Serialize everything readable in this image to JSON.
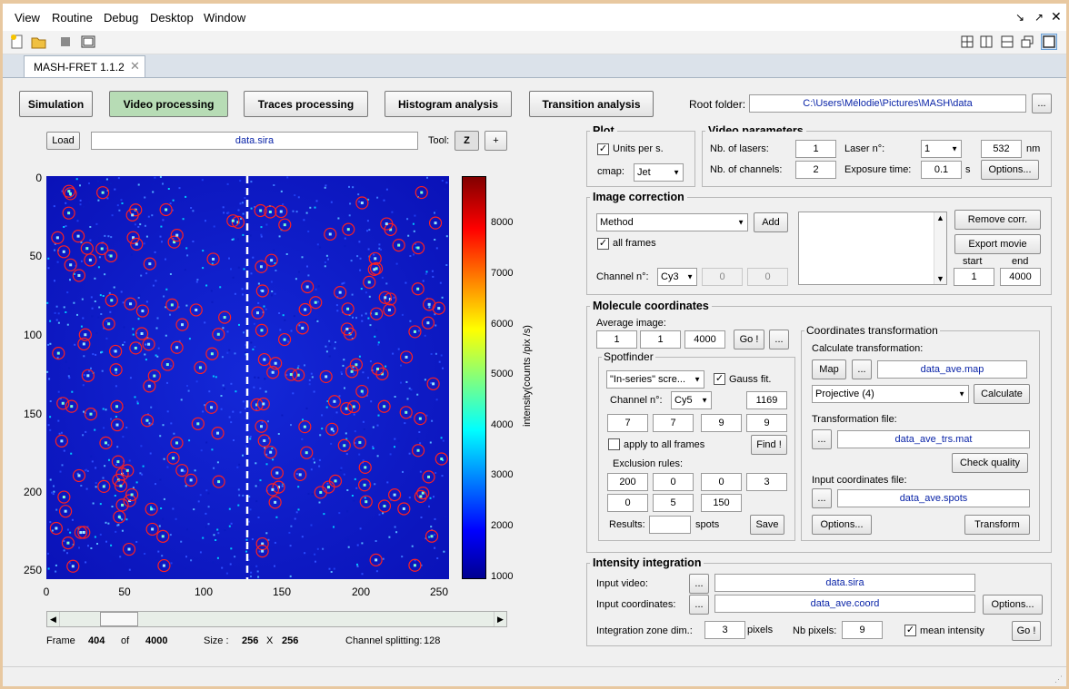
{
  "menu": [
    "View",
    "Routine",
    "Debug",
    "Desktop",
    "Window"
  ],
  "tab": {
    "label": "MASH-FRET 1.1.2"
  },
  "nav": [
    "Simulation",
    "Video processing",
    "Traces processing",
    "Histogram analysis",
    "Transition analysis"
  ],
  "root": {
    "label": "Root folder:",
    "path": "C:\\Users\\Mélodie\\Pictures\\MASH\\data",
    "browse": "..."
  },
  "viewer": {
    "load": "Load",
    "file": "data.sira",
    "tool_label": "Tool:",
    "tool_z": "Z",
    "tool_plus": "+",
    "yticks": [
      "0",
      "50",
      "100",
      "150",
      "200",
      "250"
    ],
    "xticks": [
      "0",
      "50",
      "100",
      "150",
      "200",
      "250"
    ],
    "cticks": [
      "8000",
      "7000",
      "6000",
      "5000",
      "4000",
      "3000",
      "2000",
      "1000"
    ],
    "clabel": "intensity(counts /pix /s)",
    "frame_label": "Frame",
    "frame": "404",
    "of_label": "of",
    "total": "4000",
    "size_label": "Size :",
    "size_w": "256",
    "x_label": "X",
    "size_h": "256",
    "split_label": "Channel splitting:",
    "split": "128",
    "slider_frac": 0.101
  },
  "plot": {
    "title": "Plot",
    "units": "Units per s.",
    "cmap_label": "cmap:",
    "cmap": "Jet"
  },
  "video_params": {
    "title": "Video parameters",
    "lasers_label": "Nb. of lasers:",
    "lasers": "1",
    "laser_n_label": "Laser n°:",
    "laser_n": "1",
    "wavelength": "532",
    "nm": "nm",
    "channels_label": "Nb. of channels:",
    "channels": "2",
    "exposure_label": "Exposure time:",
    "exposure": "0.1",
    "s": "s",
    "options": "Options..."
  },
  "image_corr": {
    "title": "Image correction",
    "method": "Method",
    "add": "Add",
    "all_frames": "all frames",
    "channel_label": "Channel n°:",
    "channel": "Cy3",
    "v1": "0",
    "v2": "0",
    "remove": "Remove corr.",
    "export": "Export movie",
    "start_label": "start",
    "end_label": "end",
    "start": "1",
    "end": "4000"
  },
  "mol_coords": {
    "title": "Molecule coordinates",
    "avg_label": "Average image:",
    "avg1": "1",
    "avg2": "1",
    "avg3": "4000",
    "go": "Go !",
    "more": "..."
  },
  "spotfinder": {
    "title": "Spotfinder",
    "method": "\"In-series\" scre...",
    "gauss": "Gauss fit.",
    "channel_label": "Channel n°:",
    "channel": "Cy5",
    "count": "1169",
    "p1": "7",
    "p2": "7",
    "p3": "9",
    "p4": "9",
    "apply_all": "apply to all frames",
    "find": "Find !",
    "excl_label": "Exclusion rules:",
    "e1": "200",
    "e2": "0",
    "e3": "0",
    "e4": "3",
    "e5": "0",
    "e6": "5",
    "e7": "150",
    "results_label": "Results:",
    "results": "",
    "spots": "spots",
    "save": "Save"
  },
  "coord_trans": {
    "title": "Coordinates transformation",
    "calc_label": "Calculate transformation:",
    "map": "Map",
    "more": "...",
    "map_file": "data_ave.map",
    "method": "Projective (4)",
    "calculate": "Calculate",
    "trans_label": "Transformation file:",
    "trans_file": "data_ave_trs.mat",
    "check": "Check quality",
    "input_label": "Input coordinates file:",
    "input_file": "data_ave.spots",
    "options": "Options...",
    "transform": "Transform"
  },
  "intensity": {
    "title": "Intensity integration",
    "video_label": "Input video:",
    "video": "data.sira",
    "coords_label": "Input coordinates:",
    "coords": "data_ave.coord",
    "options": "Options...",
    "zone_label": "Integration zone dim.:",
    "zone": "3",
    "pixels": "pixels",
    "nb_label": "Nb pixels:",
    "nb": "9",
    "mean": "mean intensity",
    "go": "Go !",
    "more": "..."
  }
}
